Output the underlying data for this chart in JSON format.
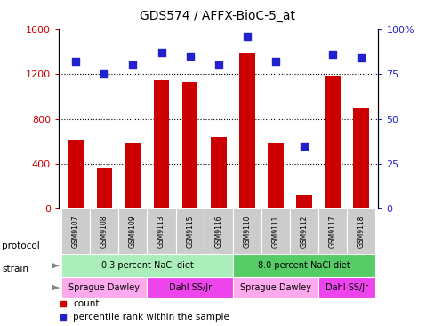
{
  "title": "GDS574 / AFFX-BioC-5_at",
  "samples": [
    "GSM9107",
    "GSM9108",
    "GSM9109",
    "GSM9113",
    "GSM9115",
    "GSM9116",
    "GSM9110",
    "GSM9111",
    "GSM9112",
    "GSM9117",
    "GSM9118"
  ],
  "counts": [
    610,
    360,
    590,
    1150,
    1130,
    640,
    1390,
    590,
    120,
    1190,
    900
  ],
  "percentiles": [
    82,
    75,
    80,
    87,
    85,
    80,
    96,
    82,
    35,
    86,
    84
  ],
  "ylim_left": [
    0,
    1600
  ],
  "ylim_right": [
    0,
    100
  ],
  "yticks_left": [
    0,
    400,
    800,
    1200,
    1600
  ],
  "ytick_labels_left": [
    "0",
    "400",
    "800",
    "1200",
    "1600"
  ],
  "yticks_right": [
    0,
    25,
    50,
    75,
    100
  ],
  "ytick_labels_right": [
    "0",
    "25",
    "50",
    "75",
    "100%"
  ],
  "bar_color": "#cc0000",
  "dot_color": "#2222cc",
  "protocol_groups": [
    {
      "label": "0.3 percent NaCl diet",
      "start": 0,
      "end": 5,
      "color": "#aaeebb"
    },
    {
      "label": "8.0 percent NaCl diet",
      "start": 6,
      "end": 10,
      "color": "#55cc66"
    }
  ],
  "strain_groups": [
    {
      "label": "Sprague Dawley",
      "start": 0,
      "end": 2,
      "color": "#ffaaee"
    },
    {
      "label": "Dahl SS/Jr",
      "start": 3,
      "end": 5,
      "color": "#ee44ee"
    },
    {
      "label": "Sprague Dawley",
      "start": 6,
      "end": 8,
      "color": "#ffaaee"
    },
    {
      "label": "Dahl SS/Jr",
      "start": 9,
      "end": 10,
      "color": "#ee44ee"
    }
  ],
  "legend_count_label": "count",
  "legend_pct_label": "percentile rank within the sample",
  "tick_label_color_left": "#cc0000",
  "tick_label_color_right": "#2222cc",
  "sample_box_color": "#cccccc",
  "protocol_label": "protocol",
  "strain_label": "strain",
  "figsize": [
    4.89,
    3.66
  ],
  "dpi": 100
}
